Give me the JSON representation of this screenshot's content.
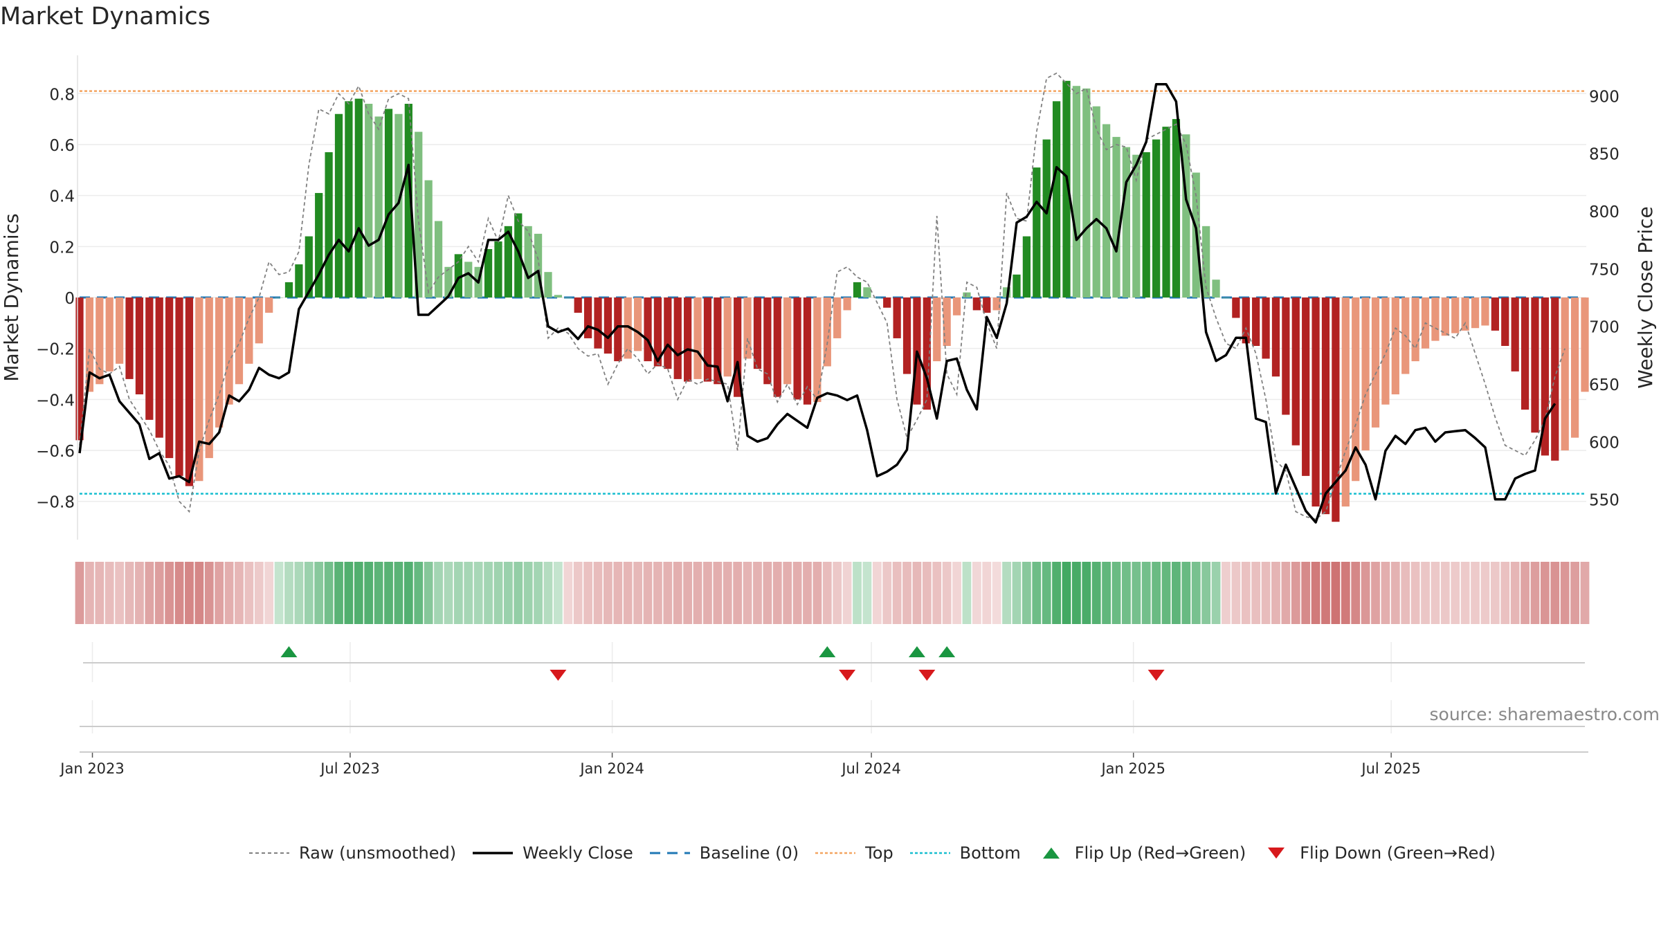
{
  "chart_data": {
    "type": "bar",
    "title": "Market Dynamics",
    "ylabel": "Market Dynamics",
    "y2label": "Weekly Close Price",
    "ylim": [
      -0.95,
      0.95
    ],
    "y2lim": [
      515,
      935
    ],
    "yticks": [
      0.8,
      0.6,
      0.4,
      0.2,
      0,
      -0.2,
      -0.4,
      -0.6,
      -0.8
    ],
    "ytick_labels": [
      "0.8",
      "0.6",
      "0.4",
      "0.2",
      "0",
      "−0.2",
      "−0.4",
      "−0.6",
      "−0.8"
    ],
    "y2ticks": [
      900,
      850,
      800,
      750,
      700,
      650,
      600,
      550
    ],
    "y2tick_labels": [
      "900",
      "850",
      "800",
      "750",
      "700",
      "650",
      "600",
      "550"
    ],
    "xticks": [
      "2023-01-01",
      "2023-07-01",
      "2024-01-01",
      "2024-07-01",
      "2025-01-01",
      "2025-07-01"
    ],
    "xtick_labels": [
      "Jan 2023",
      "Jul 2023",
      "Jan 2024",
      "Jul 2024",
      "Jan 2025",
      "Jul 2025"
    ],
    "x_start": "2022-12-23",
    "top_level": 0.81,
    "bottom_level": -0.77,
    "grid": true,
    "legend_position": "bottom",
    "colors": {
      "strong_green": "#228b22",
      "light_green": "#7fbf7f",
      "strong_red": "#b22222",
      "light_red": "#e9967a",
      "raw": "#808080",
      "close": "#000000",
      "baseline": "#1f77b4",
      "top": "#f4a460",
      "bottom": "#17becf",
      "flip_up": "#1a9641",
      "flip_down": "#d7191c"
    },
    "series": [
      {
        "name": "Market Dynamics",
        "values": [
          -0.56,
          -0.37,
          -0.34,
          -0.29,
          -0.26,
          -0.32,
          -0.38,
          -0.48,
          -0.55,
          -0.63,
          -0.7,
          -0.74,
          -0.72,
          -0.63,
          -0.51,
          -0.42,
          -0.34,
          -0.26,
          -0.18,
          -0.06,
          0.0,
          0.06,
          0.13,
          0.24,
          0.41,
          0.57,
          0.72,
          0.77,
          0.78,
          0.76,
          0.71,
          0.74,
          0.72,
          0.76,
          0.65,
          0.46,
          0.3,
          0.12,
          0.17,
          0.14,
          0.12,
          0.19,
          0.22,
          0.28,
          0.33,
          0.28,
          0.25,
          0.1,
          0.01,
          0.0,
          -0.06,
          -0.16,
          -0.2,
          -0.22,
          -0.25,
          -0.24,
          -0.21,
          -0.25,
          -0.27,
          -0.28,
          -0.32,
          -0.33,
          -0.32,
          -0.33,
          -0.34,
          -0.31,
          -0.39,
          -0.24,
          -0.28,
          -0.34,
          -0.39,
          -0.34,
          -0.4,
          -0.42,
          -0.41,
          -0.27,
          -0.16,
          -0.05,
          0.06,
          0.04,
          0.0,
          -0.04,
          -0.16,
          -0.3,
          -0.42,
          -0.44,
          -0.25,
          -0.19,
          -0.07,
          0.02,
          -0.05,
          -0.06,
          -0.05,
          0.04,
          0.09,
          0.24,
          0.51,
          0.62,
          0.77,
          0.85,
          0.83,
          0.82,
          0.75,
          0.68,
          0.63,
          0.59,
          0.56,
          0.57,
          0.62,
          0.67,
          0.7,
          0.64,
          0.49,
          0.28,
          0.07,
          0.0,
          -0.08,
          -0.18,
          -0.19,
          -0.24,
          -0.31,
          -0.46,
          -0.58,
          -0.7,
          -0.82,
          -0.85,
          -0.88,
          -0.82,
          -0.72,
          -0.6,
          -0.51,
          -0.42,
          -0.38,
          -0.3,
          -0.25,
          -0.2,
          -0.17,
          -0.15,
          -0.14,
          -0.13,
          -0.12,
          -0.11,
          -0.13,
          -0.19,
          -0.29,
          -0.44,
          -0.53,
          -0.62,
          -0.64,
          -0.6,
          -0.55,
          -0.37
        ]
      },
      {
        "name": "Raw (unsmoothed)",
        "values": [
          -0.58,
          -0.2,
          -0.28,
          -0.3,
          -0.27,
          -0.4,
          -0.46,
          -0.52,
          -0.6,
          -0.66,
          -0.8,
          -0.84,
          -0.6,
          -0.48,
          -0.38,
          -0.25,
          -0.18,
          -0.08,
          0.0,
          0.14,
          0.09,
          0.1,
          0.18,
          0.52,
          0.74,
          0.72,
          0.8,
          0.76,
          0.83,
          0.72,
          0.66,
          0.78,
          0.8,
          0.78,
          0.3,
          0.02,
          0.08,
          0.11,
          0.14,
          0.2,
          0.14,
          0.31,
          0.22,
          0.4,
          0.3,
          0.26,
          0.15,
          -0.16,
          -0.12,
          -0.14,
          -0.2,
          -0.23,
          -0.22,
          -0.34,
          -0.26,
          -0.2,
          -0.24,
          -0.3,
          -0.26,
          -0.28,
          -0.4,
          -0.32,
          -0.34,
          -0.32,
          -0.33,
          -0.34,
          -0.6,
          -0.16,
          -0.28,
          -0.3,
          -0.41,
          -0.34,
          -0.42,
          -0.35,
          -0.4,
          -0.18,
          0.1,
          0.12,
          0.08,
          0.06,
          -0.02,
          -0.1,
          -0.4,
          -0.55,
          -0.48,
          -0.4,
          0.32,
          -0.3,
          -0.38,
          0.06,
          0.04,
          -0.1,
          -0.2,
          0.41,
          0.31,
          0.3,
          0.65,
          0.86,
          0.88,
          0.84,
          0.8,
          0.82,
          0.66,
          0.58,
          0.6,
          0.59,
          0.46,
          0.62,
          0.64,
          0.66,
          0.68,
          0.6,
          0.4,
          0.04,
          -0.08,
          -0.18,
          -0.2,
          -0.12,
          -0.22,
          -0.4,
          -0.64,
          -0.68,
          -0.84,
          -0.86,
          -0.87,
          -0.84,
          -0.72,
          -0.6,
          -0.5,
          -0.38,
          -0.3,
          -0.22,
          -0.12,
          -0.15,
          -0.2,
          -0.1,
          -0.12,
          -0.14,
          -0.16,
          -0.1,
          -0.22,
          -0.34,
          -0.47,
          -0.58,
          -0.6,
          -0.62,
          -0.56,
          -0.48,
          -0.31,
          -0.2
        ]
      },
      {
        "name": "Weekly Close",
        "axis": "right",
        "values": [
          590,
          660,
          655,
          658,
          635,
          625,
          615,
          585,
          590,
          568,
          570,
          565,
          600,
          598,
          608,
          640,
          635,
          645,
          664,
          658,
          655,
          660,
          715,
          730,
          745,
          762,
          775,
          765,
          785,
          770,
          775,
          797,
          807,
          840,
          710,
          710,
          718,
          726,
          742,
          746,
          738,
          775,
          775,
          782,
          765,
          742,
          748,
          700,
          695,
          698,
          689,
          700,
          697,
          690,
          700,
          700,
          695,
          688,
          670,
          684,
          675,
          680,
          678,
          666,
          665,
          635,
          669,
          605,
          600,
          603,
          615,
          624,
          618,
          612,
          638,
          642,
          640,
          636,
          640,
          610,
          570,
          574,
          580,
          593,
          678,
          655,
          620,
          670,
          672,
          645,
          628,
          708,
          690,
          720,
          790,
          795,
          808,
          798,
          838,
          830,
          775,
          785,
          793,
          785,
          765,
          825,
          840,
          860,
          910,
          910,
          895,
          810,
          785,
          695,
          670,
          675,
          690,
          690,
          620,
          617,
          555,
          580,
          560,
          540,
          530,
          555,
          565,
          575,
          595,
          580,
          550,
          592,
          605,
          598,
          610,
          612,
          600,
          608,
          609,
          610,
          603,
          595,
          550,
          550,
          568,
          572,
          575,
          620,
          633
        ]
      }
    ],
    "strip_intensity": [
      -0.56,
      -0.37,
      -0.34,
      -0.29,
      -0.26,
      -0.32,
      -0.38,
      -0.48,
      -0.55,
      -0.63,
      -0.7,
      -0.74,
      -0.72,
      -0.63,
      -0.51,
      -0.42,
      -0.34,
      -0.26,
      -0.18,
      -0.1,
      0.1,
      0.2,
      0.25,
      0.35,
      0.45,
      0.57,
      0.72,
      0.77,
      0.78,
      0.76,
      0.71,
      0.74,
      0.72,
      0.76,
      0.65,
      0.46,
      0.3,
      0.25,
      0.3,
      0.28,
      0.26,
      0.3,
      0.32,
      0.35,
      0.38,
      0.34,
      0.3,
      0.2,
      0.1,
      -0.1,
      -0.2,
      -0.25,
      -0.3,
      -0.32,
      -0.35,
      -0.34,
      -0.33,
      -0.36,
      -0.37,
      -0.38,
      -0.4,
      -0.4,
      -0.4,
      -0.4,
      -0.42,
      -0.4,
      -0.42,
      -0.36,
      -0.38,
      -0.4,
      -0.42,
      -0.4,
      -0.42,
      -0.42,
      -0.42,
      -0.3,
      -0.2,
      -0.12,
      0.15,
      0.1,
      -0.1,
      -0.2,
      -0.28,
      -0.3,
      -0.32,
      -0.3,
      -0.26,
      -0.2,
      -0.1,
      0.15,
      -0.08,
      -0.1,
      -0.05,
      0.2,
      0.3,
      0.45,
      0.6,
      0.65,
      0.77,
      0.85,
      0.83,
      0.82,
      0.75,
      0.68,
      0.63,
      0.59,
      0.56,
      0.57,
      0.62,
      0.67,
      0.7,
      0.64,
      0.55,
      0.45,
      0.35,
      -0.15,
      -0.2,
      -0.25,
      -0.28,
      -0.3,
      -0.36,
      -0.46,
      -0.58,
      -0.7,
      -0.82,
      -0.85,
      -0.88,
      -0.82,
      -0.72,
      -0.6,
      -0.51,
      -0.42,
      -0.38,
      -0.3,
      -0.25,
      -0.22,
      -0.2,
      -0.2,
      -0.19,
      -0.19,
      -0.18,
      -0.18,
      -0.2,
      -0.25,
      -0.35,
      -0.48,
      -0.55,
      -0.62,
      -0.64,
      -0.6,
      -0.55,
      -0.45
    ],
    "flip_up_dates": [
      "2023-05-19",
      "2024-05-31",
      "2024-08-02",
      "2024-08-23"
    ],
    "flip_down_dates": [
      "2023-11-24",
      "2024-06-14",
      "2024-08-09",
      "2025-01-17"
    ]
  },
  "legend": {
    "raw": "Raw (unsmoothed)",
    "close": "Weekly Close",
    "baseline": "Baseline (0)",
    "top": "Top",
    "bottom": "Bottom",
    "flip_up": "Flip Up (Red→Green)",
    "flip_down": "Flip Down (Green→Red)"
  },
  "source": "source: sharemaestro.com"
}
